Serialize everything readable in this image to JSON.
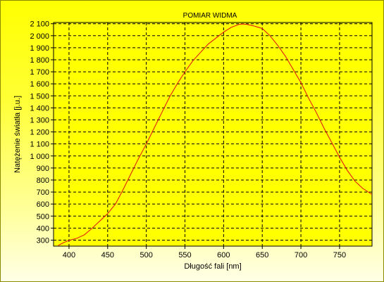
{
  "chart_data": {
    "type": "line",
    "title": "POMIAR WIDMA",
    "xlabel": "Długość fali [nm]",
    "ylabel": "Natężenie światła [j.u.]",
    "xlim": [
      380,
      792
    ],
    "ylim": [
      250,
      2110
    ],
    "x_ticks": [
      400,
      450,
      500,
      550,
      600,
      650,
      700,
      750
    ],
    "x_tick_labels": [
      "400",
      "450",
      "500",
      "550",
      "600",
      "650",
      "700",
      "750"
    ],
    "y_ticks": [
      300,
      400,
      500,
      600,
      700,
      800,
      900,
      1000,
      1100,
      1200,
      1300,
      1400,
      1500,
      1600,
      1700,
      1800,
      1900,
      2000,
      2100
    ],
    "y_tick_labels": [
      "300",
      "400",
      "500",
      "600",
      "700",
      "800",
      "900",
      "1 000",
      "1 100",
      "1 200",
      "1 300",
      "1 400",
      "1 500",
      "1 600",
      "1 700",
      "1 800",
      "1 900",
      "2 000",
      "2 100"
    ],
    "grid": true,
    "series": [
      {
        "color": "#e01010",
        "x": [
          386,
          393,
          400,
          410,
          420,
          430,
          440,
          450,
          460,
          470,
          480,
          490,
          500,
          510,
          520,
          530,
          540,
          550,
          560,
          570,
          580,
          590,
          600,
          610,
          620,
          625,
          630,
          640,
          650,
          660,
          670,
          680,
          690,
          700,
          710,
          720,
          730,
          740,
          750,
          760,
          770,
          780,
          792
        ],
        "y": [
          255,
          280,
          298,
          315,
          345,
          400,
          460,
          520,
          600,
          720,
          850,
          980,
          1100,
          1230,
          1360,
          1490,
          1600,
          1700,
          1790,
          1860,
          1930,
          1980,
          2030,
          2070,
          2095,
          2098,
          2095,
          2080,
          2060,
          2000,
          1920,
          1830,
          1720,
          1610,
          1480,
          1360,
          1230,
          1110,
          990,
          880,
          790,
          730,
          680
        ]
      }
    ]
  }
}
